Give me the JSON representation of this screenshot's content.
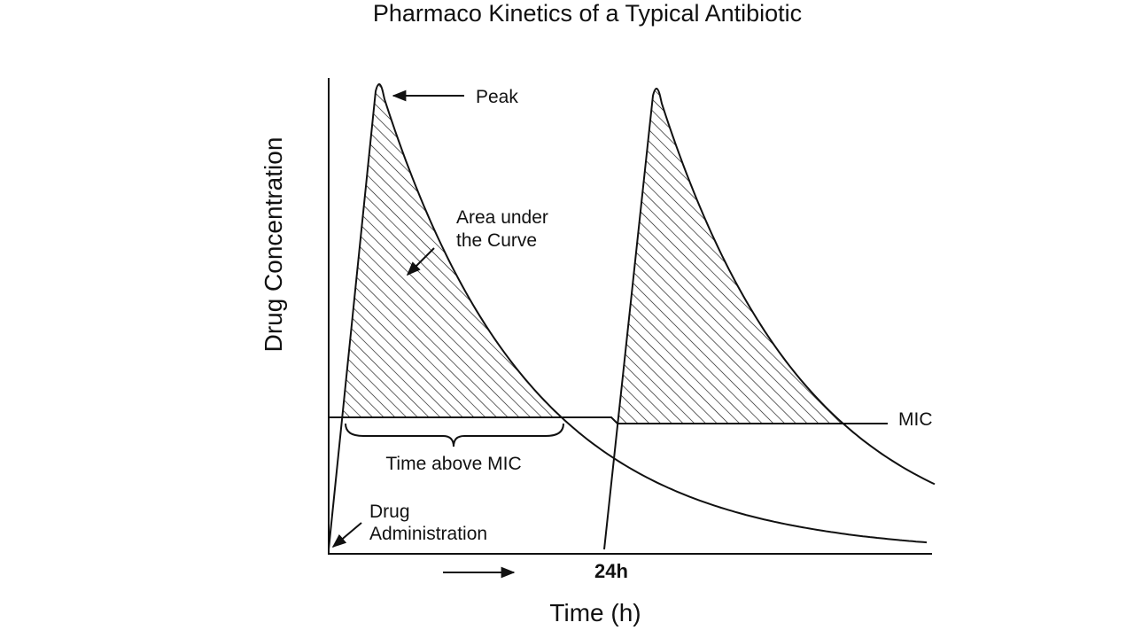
{
  "title": "Pharmaco Kinetics of a Typical Antibiotic",
  "axes": {
    "y_label": "Drug Concentration",
    "x_label": "Time (h)"
  },
  "annotations": {
    "peak": "Peak",
    "auc": [
      "Area under",
      "the Curve"
    ],
    "time_above_mic": "Time above MIC",
    "mic": "MIC",
    "drug_administration": [
      "Drug",
      "Administration"
    ],
    "dose_time": "24h"
  }
}
